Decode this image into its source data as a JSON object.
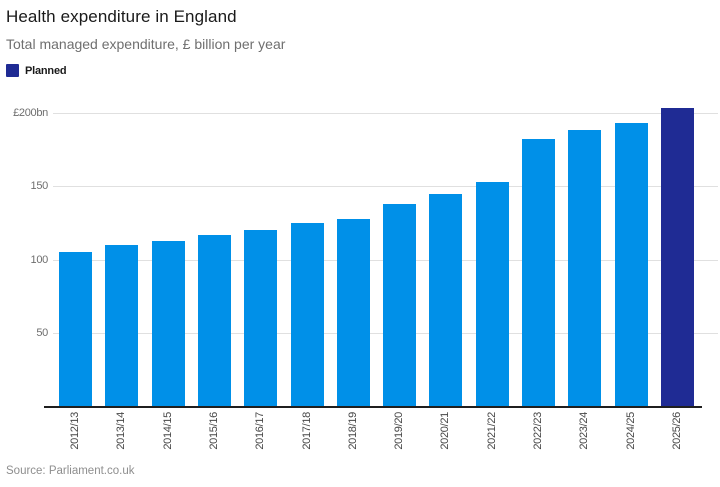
{
  "header": {
    "title": "Health expenditure in England",
    "subtitle": "Total managed expenditure, £ billion per year"
  },
  "source": "Source: Parliament.co.uk",
  "chart_data": {
    "type": "bar",
    "title": "Health expenditure in England",
    "subtitle": "Total managed expenditure, £ billion per year",
    "unit": "£ billion per year",
    "categories": [
      "2012/13",
      "2013/14",
      "2014/15",
      "2015/16",
      "2016/17",
      "2017/18",
      "2018/19",
      "2019/20",
      "2020/21",
      "2021/22",
      "2022/23",
      "2023/24",
      "2024/25",
      "2025/26"
    ],
    "values": [
      105,
      110,
      113,
      117,
      120,
      125,
      128,
      138,
      145,
      153,
      182,
      188,
      193,
      203
    ],
    "planned_category": "2025/26",
    "ylim": [
      0,
      205
    ],
    "grid": true,
    "y_ticks": [
      {
        "value": 200,
        "label": "£200bn"
      },
      {
        "value": 150,
        "label": "150"
      },
      {
        "value": 100,
        "label": "100"
      },
      {
        "value": 50,
        "label": "50"
      }
    ],
    "colors": {
      "actual": "#0090e8",
      "planned": "#1f2b94",
      "gridline": "#e0e0e0",
      "axis": "#1f1f1f",
      "y_label": "#6e6e6e",
      "x_label": "#474747"
    },
    "legend": {
      "position": "top-left",
      "items": [
        {
          "label": "Planned",
          "color": "#1f2b94"
        }
      ]
    }
  }
}
